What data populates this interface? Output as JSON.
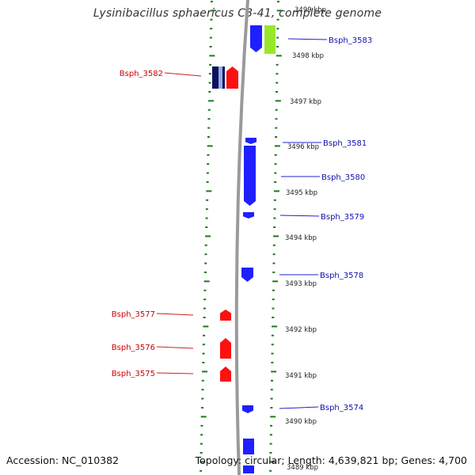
{
  "header": {
    "title": "Lysinibacillus sphaericus C3-41, complete genome"
  },
  "footer": {
    "accession": "Accession: NC_010382",
    "topology": "Topology: circular; Length: 4,639,821 bp; Genes: 4,700"
  },
  "colors": {
    "backbone": "#9a9a9a",
    "tick": "#1a7a1a",
    "forward_gene": "#1f1fff",
    "reverse_gene": "#ff1010",
    "forward_label": "#1010aa",
    "reverse_label": "#cc0000",
    "highlight_gene": "#99e62a",
    "dark_gene": "#101060",
    "lightblue_gene": "#8fb0e0"
  },
  "scale_labels": [
    "3499 kbp",
    "3498 kbp",
    "3497 kbp",
    "3496 kbp",
    "3495 kbp",
    "3494 kbp",
    "3493 kbp",
    "3492 kbp",
    "3491 kbp",
    "3490 kbp",
    "3489 kbp"
  ],
  "forward_genes": [
    {
      "label": "Bsph_3583"
    },
    {
      "label": "Bsph_3581"
    },
    {
      "label": "Bsph_3580"
    },
    {
      "label": "Bsph_3579"
    },
    {
      "label": "Bsph_3578"
    },
    {
      "label": "Bsph_3574"
    }
  ],
  "reverse_genes": [
    {
      "label": "Bsph_3582"
    },
    {
      "label": "Bsph_3577"
    },
    {
      "label": "Bsph_3576"
    },
    {
      "label": "Bsph_3575"
    }
  ]
}
